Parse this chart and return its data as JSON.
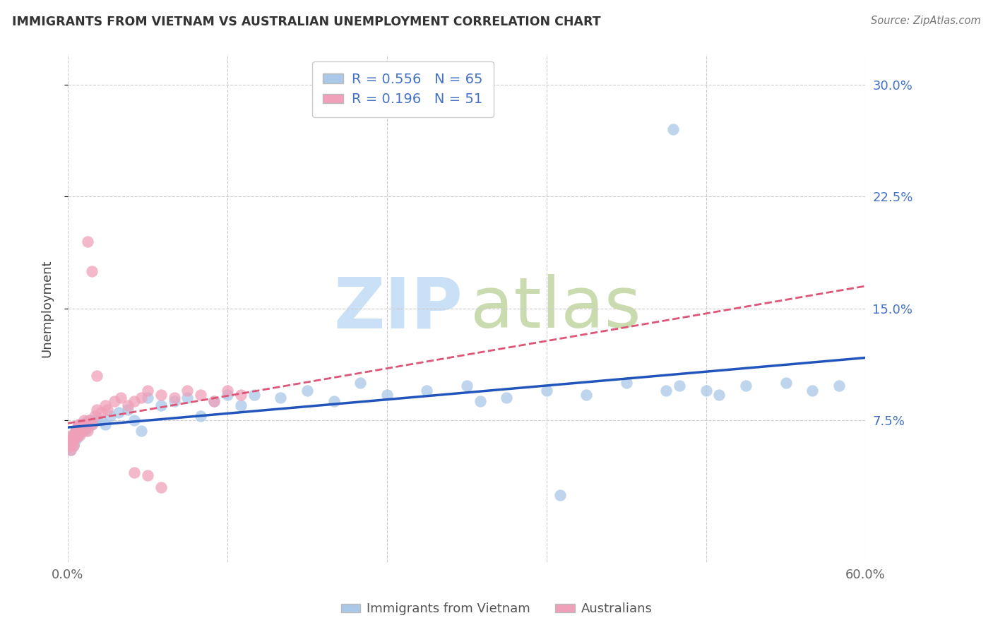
{
  "title": "IMMIGRANTS FROM VIETNAM VS AUSTRALIAN UNEMPLOYMENT CORRELATION CHART",
  "source": "Source: ZipAtlas.com",
  "ylabel": "Unemployment",
  "xlim": [
    0.0,
    0.6
  ],
  "ylim": [
    -0.02,
    0.32
  ],
  "series1_color": "#aac8e8",
  "series2_color": "#f0a0b8",
  "trendline1_color": "#2255bb",
  "trendline2_color": "#dd5577",
  "R1": 0.556,
  "N1": 65,
  "R2": 0.196,
  "N2": 51,
  "legend_label1": "Immigrants from Vietnam",
  "legend_label2": "Australians",
  "ytick_vals": [
    0.075,
    0.15,
    0.225,
    0.3
  ],
  "ytick_labels": [
    "7.5%",
    "15.0%",
    "22.5%",
    "30.0%"
  ],
  "xtick_vals": [
    0.0,
    0.12,
    0.24,
    0.36,
    0.48,
    0.6
  ],
  "xtick_labels": [
    "0.0%",
    "",
    "",
    "",
    "",
    "60.0%"
  ],
  "grid_color": "#cccccc",
  "text_color_blue": "#4472c4",
  "watermark_zip_color": "#c8ddf0",
  "watermark_atlas_color": "#c8d8b0",
  "blue_x": [
    0.001,
    0.002,
    0.003,
    0.003,
    0.004,
    0.004,
    0.005,
    0.005,
    0.006,
    0.006,
    0.007,
    0.007,
    0.008,
    0.008,
    0.009,
    0.009,
    0.01,
    0.01,
    0.011,
    0.012,
    0.013,
    0.014,
    0.015,
    0.016,
    0.018,
    0.02,
    0.022,
    0.025,
    0.028,
    0.032,
    0.038,
    0.045,
    0.05,
    0.055,
    0.06,
    0.07,
    0.08,
    0.09,
    0.1,
    0.11,
    0.12,
    0.13,
    0.14,
    0.16,
    0.18,
    0.2,
    0.22,
    0.24,
    0.27,
    0.3,
    0.33,
    0.36,
    0.39,
    0.42,
    0.45,
    0.46,
    0.48,
    0.51,
    0.54,
    0.56,
    0.58,
    0.37,
    0.455,
    0.49,
    0.31
  ],
  "blue_y": [
    0.058,
    0.055,
    0.06,
    0.063,
    0.058,
    0.065,
    0.06,
    0.062,
    0.065,
    0.068,
    0.063,
    0.07,
    0.065,
    0.068,
    0.07,
    0.072,
    0.068,
    0.072,
    0.07,
    0.072,
    0.068,
    0.074,
    0.07,
    0.075,
    0.072,
    0.074,
    0.076,
    0.075,
    0.072,
    0.078,
    0.08,
    0.082,
    0.075,
    0.068,
    0.09,
    0.085,
    0.088,
    0.09,
    0.078,
    0.088,
    0.092,
    0.085,
    0.092,
    0.09,
    0.095,
    0.088,
    0.1,
    0.092,
    0.095,
    0.098,
    0.09,
    0.095,
    0.092,
    0.1,
    0.095,
    0.098,
    0.095,
    0.098,
    0.1,
    0.095,
    0.098,
    0.025,
    0.27,
    0.092,
    0.088
  ],
  "pink_x": [
    0.001,
    0.001,
    0.002,
    0.002,
    0.003,
    0.003,
    0.004,
    0.004,
    0.005,
    0.005,
    0.006,
    0.006,
    0.007,
    0.007,
    0.008,
    0.008,
    0.009,
    0.009,
    0.01,
    0.01,
    0.011,
    0.012,
    0.013,
    0.014,
    0.015,
    0.016,
    0.018,
    0.02,
    0.022,
    0.025,
    0.028,
    0.03,
    0.035,
    0.04,
    0.045,
    0.05,
    0.055,
    0.06,
    0.07,
    0.08,
    0.09,
    0.1,
    0.11,
    0.12,
    0.13,
    0.05,
    0.06,
    0.07,
    0.015,
    0.018,
    0.022
  ],
  "pink_y": [
    0.058,
    0.06,
    0.055,
    0.062,
    0.06,
    0.065,
    0.062,
    0.058,
    0.065,
    0.063,
    0.068,
    0.063,
    0.07,
    0.065,
    0.068,
    0.072,
    0.068,
    0.065,
    0.07,
    0.072,
    0.068,
    0.075,
    0.07,
    0.072,
    0.068,
    0.075,
    0.072,
    0.078,
    0.082,
    0.08,
    0.085,
    0.082,
    0.088,
    0.09,
    0.085,
    0.088,
    0.09,
    0.095,
    0.092,
    0.09,
    0.095,
    0.092,
    0.088,
    0.095,
    0.092,
    0.04,
    0.038,
    0.03,
    0.195,
    0.175,
    0.105
  ]
}
